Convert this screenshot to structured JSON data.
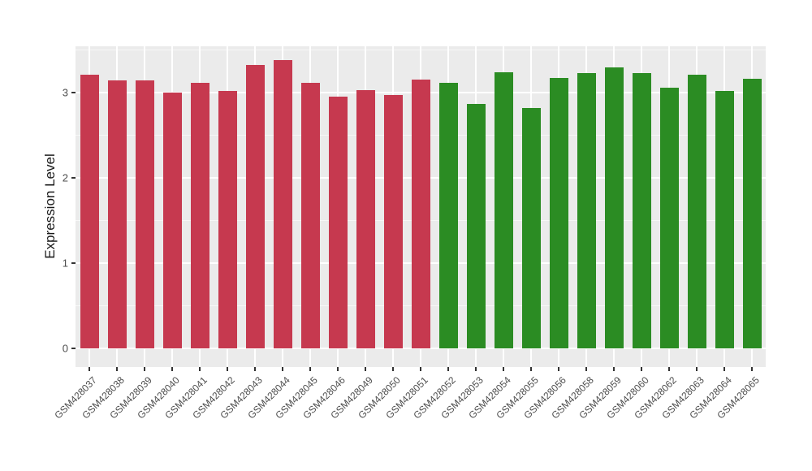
{
  "chart_data": {
    "type": "bar",
    "title": "",
    "xlabel": "",
    "ylabel": "Expression Level",
    "categories": [
      "GSM428037",
      "GSM428038",
      "GSM428039",
      "GSM428040",
      "GSM428041",
      "GSM428042",
      "GSM428043",
      "GSM428044",
      "GSM428045",
      "GSM428046",
      "GSM428049",
      "GSM428050",
      "GSM428051",
      "GSM428052",
      "GSM428053",
      "GSM428054",
      "GSM428055",
      "GSM428056",
      "GSM428058",
      "GSM428059",
      "GSM428060",
      "GSM428062",
      "GSM428063",
      "GSM428064",
      "GSM428065"
    ],
    "values": [
      3.21,
      3.14,
      3.14,
      3.0,
      3.11,
      3.02,
      3.32,
      3.38,
      3.11,
      2.95,
      3.03,
      2.97,
      3.15,
      3.11,
      2.87,
      3.24,
      2.82,
      3.17,
      3.23,
      3.3,
      3.23,
      3.06,
      3.21,
      3.02,
      3.16
    ],
    "bar_groups": [
      "group1",
      "group1",
      "group1",
      "group1",
      "group1",
      "group1",
      "group1",
      "group1",
      "group1",
      "group1",
      "group1",
      "group1",
      "group1",
      "group2",
      "group2",
      "group2",
      "group2",
      "group2",
      "group2",
      "group2",
      "group2",
      "group2",
      "group2",
      "group2",
      "group2"
    ],
    "group_colors": {
      "group1": "#C6394F",
      "group2": "#2B8C23"
    },
    "yticks": [
      0,
      1,
      2,
      3
    ],
    "ytick_labels": [
      "0",
      "1",
      "2",
      "3"
    ],
    "minor_yticks": [
      0.5,
      1.5,
      2.5,
      3.5
    ],
    "ylim": [
      0,
      3.55
    ],
    "grid": "on",
    "legend": "none",
    "panel_background": "#EBEBEB",
    "gridline_color": "#FFFFFF",
    "axis_text_color": "#4D4D4D",
    "axis_title_color": "#1A1A1A",
    "figure_background": "#FFFFFF"
  }
}
